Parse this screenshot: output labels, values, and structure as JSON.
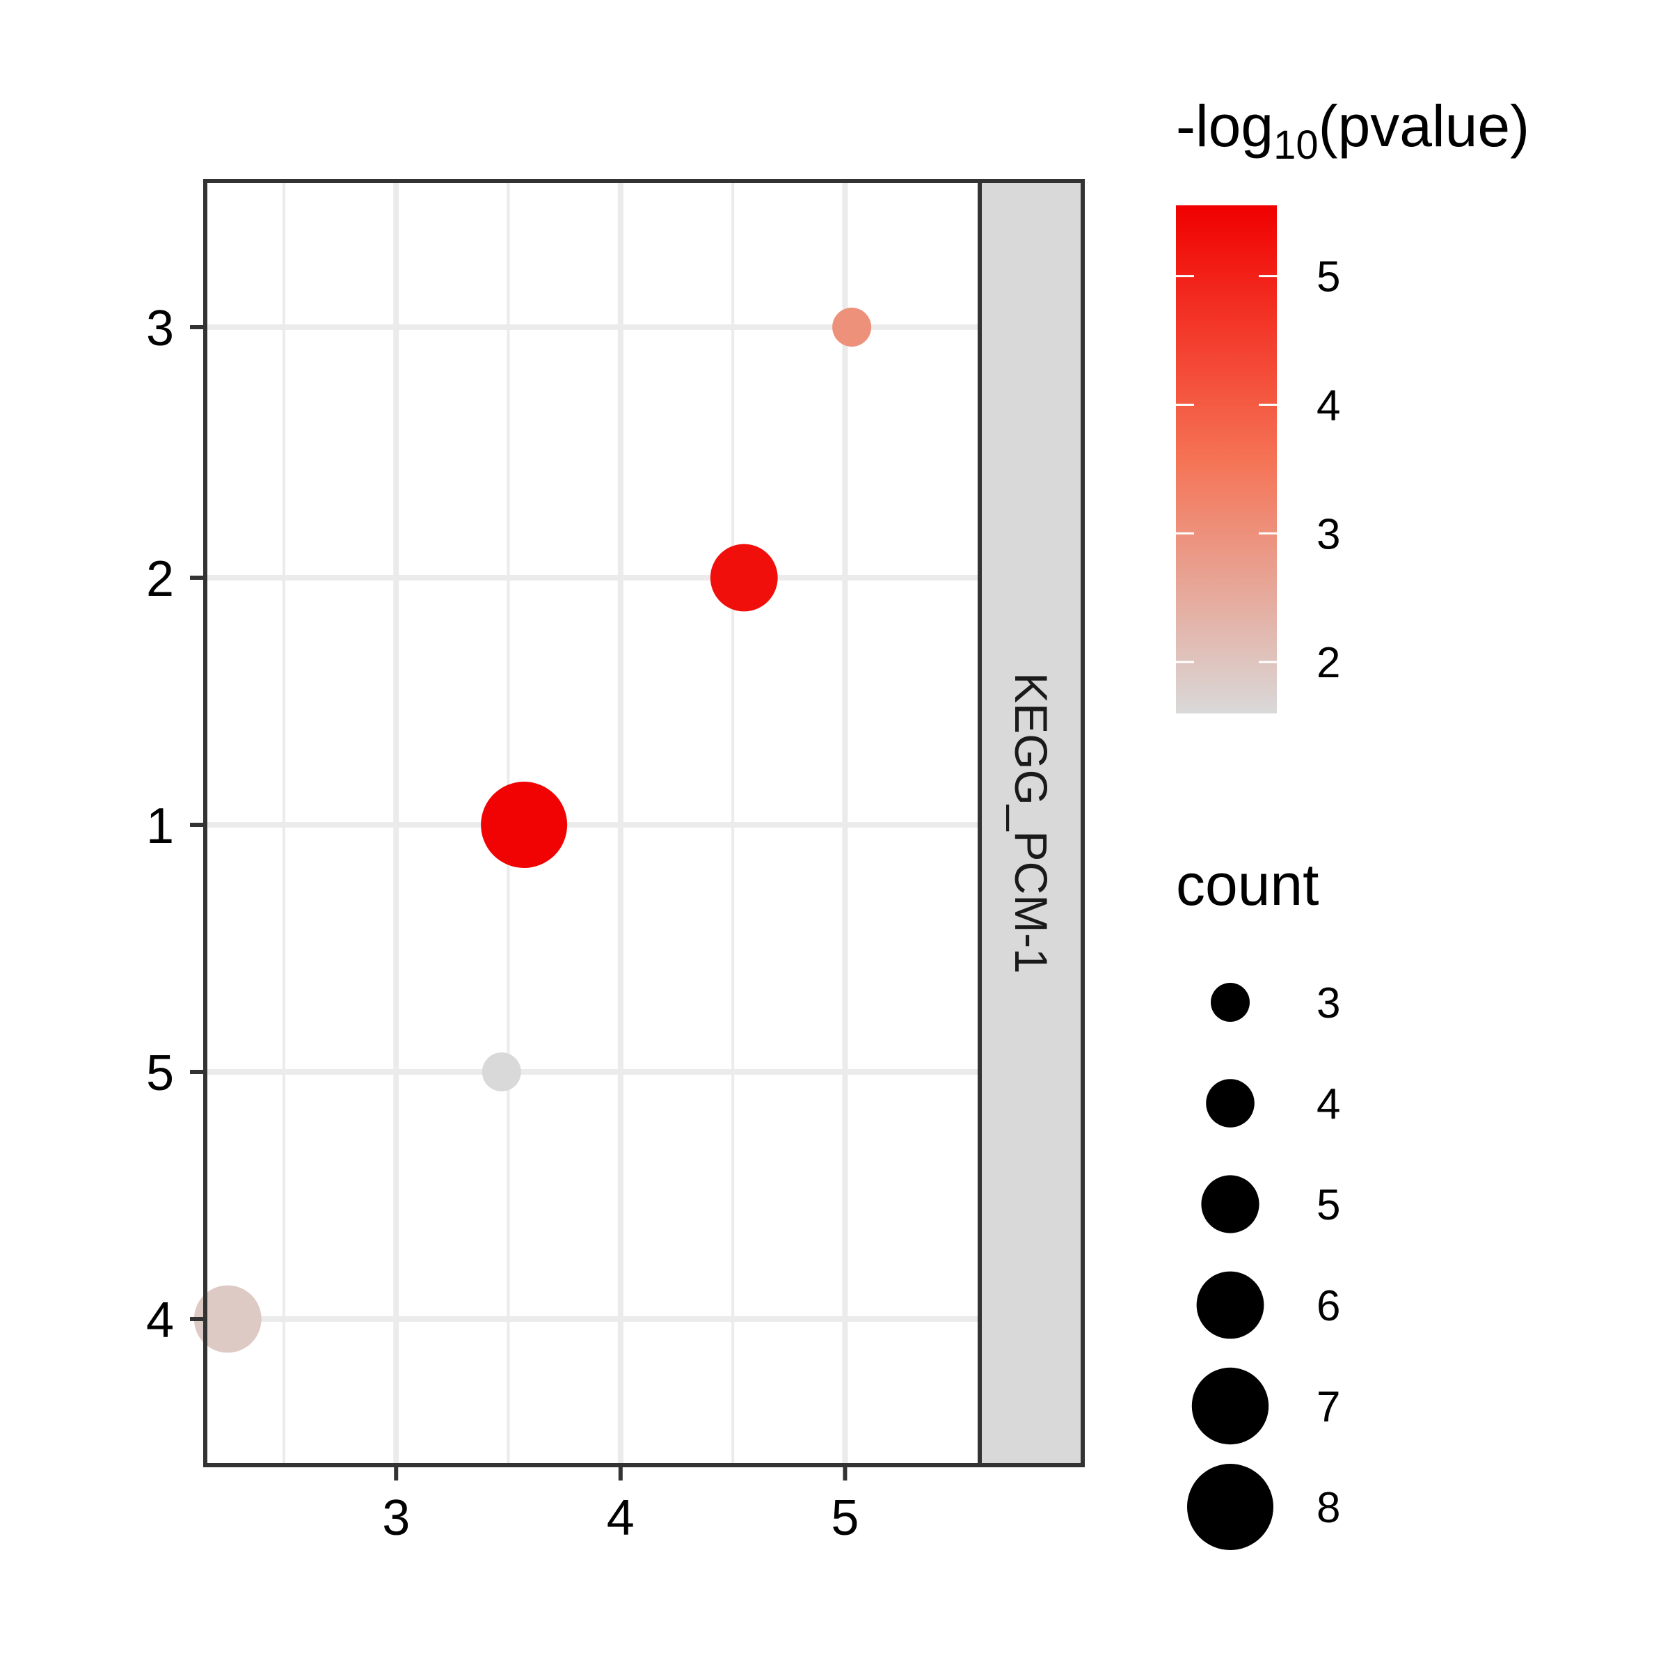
{
  "chart_data": {
    "type": "scatter",
    "title": "",
    "xlabel": "",
    "ylabel": "",
    "xlim": [
      2.15,
      5.6
    ],
    "x_ticks": [
      "3",
      "4",
      "5"
    ],
    "y_categories": [
      "4",
      "5",
      "1",
      "2",
      "3"
    ],
    "grid": true,
    "facet_strip": "KEGG_PCM-1",
    "points": [
      {
        "y": "3",
        "x": 5.03,
        "count": 3,
        "neg_log10_pvalue": 3.0
      },
      {
        "y": "2",
        "x": 4.55,
        "count": 6,
        "neg_log10_pvalue": 5.3
      },
      {
        "y": "1",
        "x": 3.57,
        "count": 8,
        "neg_log10_pvalue": 5.5
      },
      {
        "y": "5",
        "x": 3.47,
        "count": 3,
        "neg_log10_pvalue": 1.6
      },
      {
        "y": "4",
        "x": 2.25,
        "count": 6,
        "neg_log10_pvalue": 1.9
      }
    ],
    "color_legend": {
      "title_prefix": "-log",
      "title_subscript": "10",
      "title_suffix": "(pvalue)",
      "breaks": [
        "5",
        "4",
        "3",
        "2"
      ],
      "break_values": [
        5,
        4,
        3,
        2
      ],
      "range": [
        1.6,
        5.55
      ],
      "low_color": "#d9d9d9",
      "high_color": "#f00000"
    },
    "size_legend": {
      "title": "count",
      "breaks": [
        "3",
        "4",
        "5",
        "6",
        "7",
        "8"
      ],
      "break_values": [
        3,
        4,
        5,
        6,
        7,
        8
      ],
      "color": "#000000"
    },
    "colors": {
      "grid": "#ebebeb",
      "frame": "#333333",
      "strip_fill": "#d9d9d9"
    }
  }
}
